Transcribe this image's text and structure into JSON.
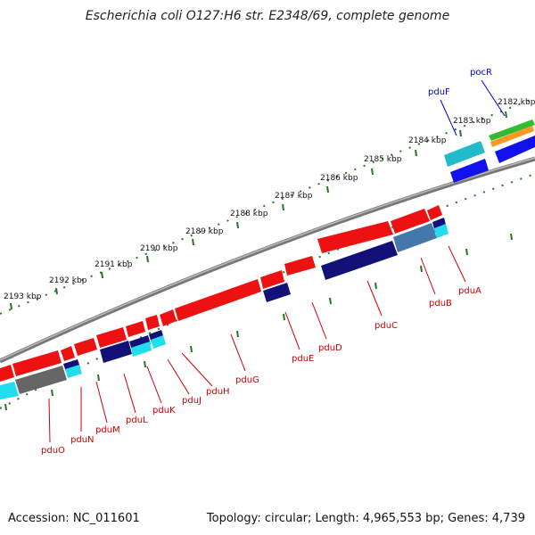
{
  "title": "Escherichia coli O127:H6 str. E2348/69, complete genome",
  "footer": {
    "accession": "Accession: NC_011601",
    "topology": "Topology: circular; Length: 4,965,553 bp; Genes: 4,739"
  },
  "colors": {
    "forward_gene": "#ff0000",
    "reverse_gene": "#0000cc",
    "label_red": "#cc0000",
    "label_blue": "#0000cc",
    "tick_green": "#227722",
    "backbone": "#888888"
  },
  "kbp_labels": [
    "2182 kbp",
    "2183 kbp",
    "2184 kbp",
    "2185 kbp",
    "2186 kbp",
    "2187 kbp",
    "2188 kbp",
    "2189 kbp",
    "2190 kbp",
    "2191 kbp",
    "2192 kbp",
    "2193 kbp"
  ],
  "gene_labels": [
    {
      "name": "pocR",
      "color": "blue"
    },
    {
      "name": "pduF",
      "color": "blue"
    },
    {
      "name": "pduA",
      "color": "red"
    },
    {
      "name": "pduB",
      "color": "red"
    },
    {
      "name": "pduC",
      "color": "red"
    },
    {
      "name": "pduD",
      "color": "red"
    },
    {
      "name": "pduE",
      "color": "red"
    },
    {
      "name": "pduG",
      "color": "red"
    },
    {
      "name": "pduH",
      "color": "red"
    },
    {
      "name": "pduJ",
      "color": "red"
    },
    {
      "name": "pduK",
      "color": "red"
    },
    {
      "name": "pduL",
      "color": "red"
    },
    {
      "name": "pduM",
      "color": "red"
    },
    {
      "name": "pduN",
      "color": "red"
    },
    {
      "name": "pduO",
      "color": "red"
    }
  ]
}
